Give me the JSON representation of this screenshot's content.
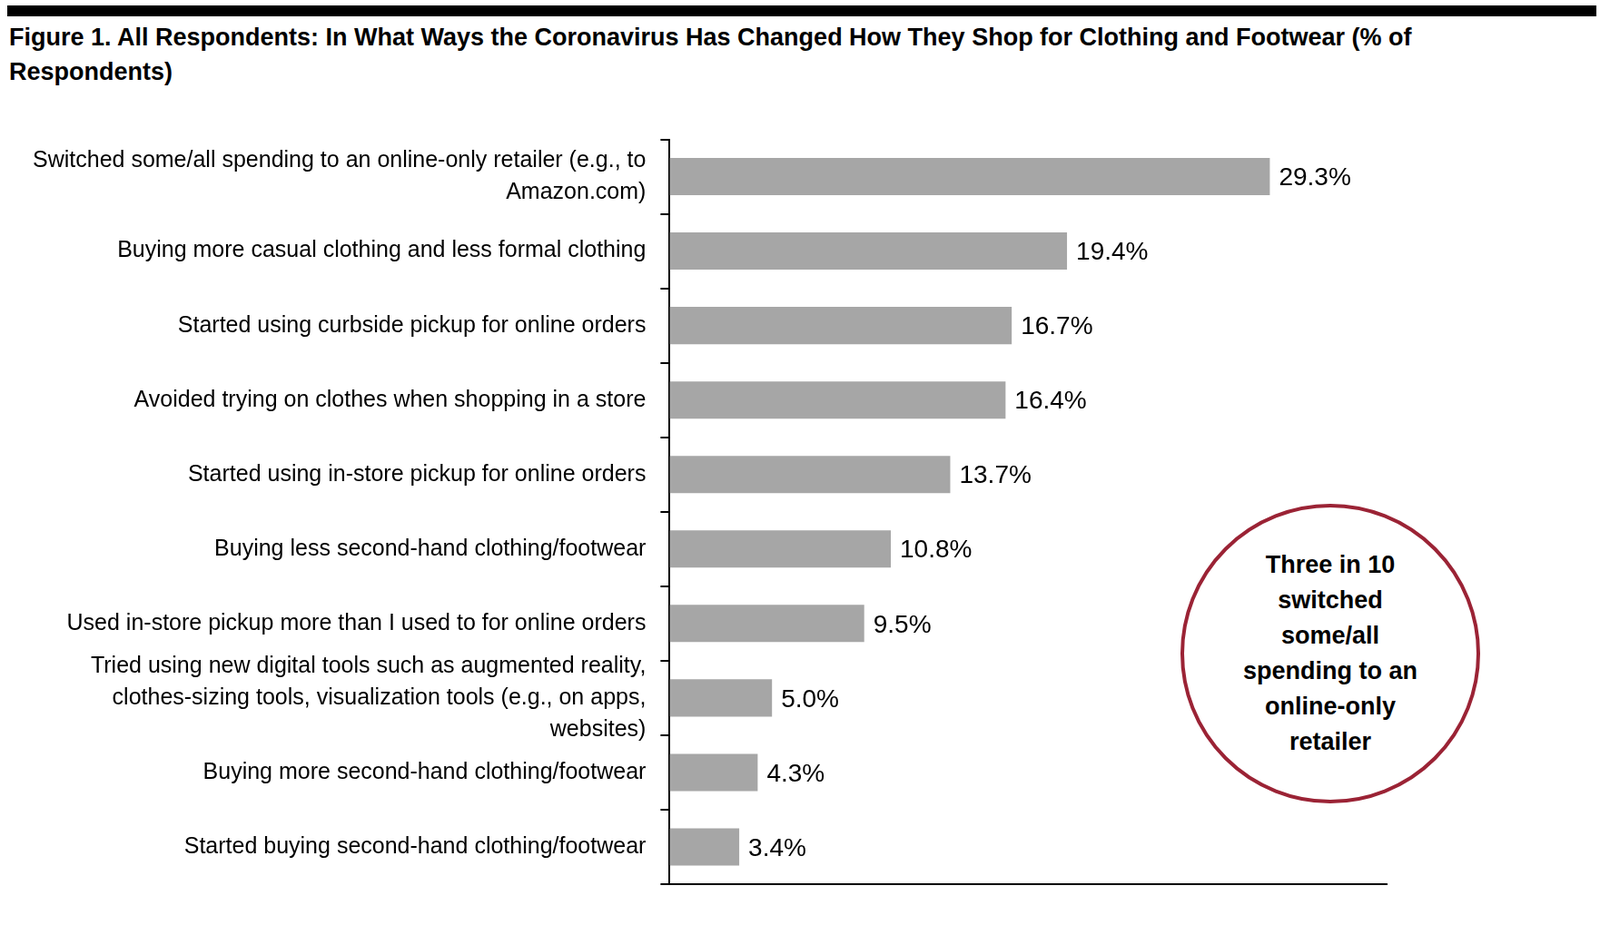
{
  "chart_data": {
    "type": "bar",
    "title": "Figure 1. All Respondents: In What Ways the Coronavirus Has Changed How They Shop for Clothing and Footwear (% of Respondents)",
    "categories": [
      "Switched some/all spending to an online-only retailer (e.g., to Amazon.com)",
      "Buying more casual clothing and less formal clothing",
      "Started using curbside pickup for online orders",
      "Avoided trying on clothes when shopping in a store",
      "Started using in-store pickup for online orders",
      "Buying less second-hand clothing/footwear",
      "Used in-store pickup more than I used to for online orders",
      "Tried using new digital tools such as augmented reality, clothes-sizing tools, visualization tools (e.g., on apps, websites)",
      "Buying more second-hand clothing/footwear",
      "Started buying second-hand clothing/footwear"
    ],
    "values": [
      29.3,
      19.4,
      16.7,
      16.4,
      13.7,
      10.8,
      9.5,
      5.0,
      4.3,
      3.4
    ],
    "value_labels": [
      "29.3%",
      "19.4%",
      "16.7%",
      "16.4%",
      "13.7%",
      "10.8%",
      "9.5%",
      "5.0%",
      "4.3%",
      "3.4%"
    ],
    "color": "#a6a6a6",
    "orientation": "horizontal",
    "xlim": [
      0,
      35
    ],
    "grid": false,
    "data_labels": true,
    "tick_labels": "y",
    "annotations": [
      "Three in 10 switched some/all spending to an online-only retailer"
    ]
  }
}
